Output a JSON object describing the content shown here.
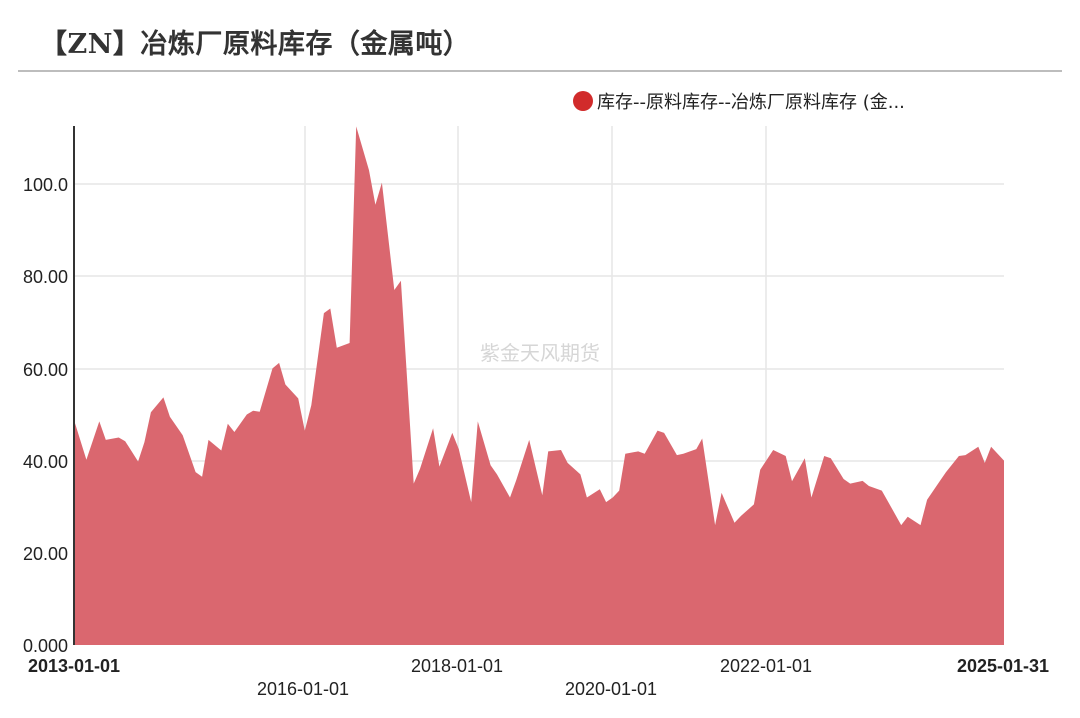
{
  "title": "【ZN】冶炼厂原料库存（金属吨）",
  "legend": {
    "label": "库存--原料库存--冶炼厂原料库存 (金...",
    "color": "#d12b2b"
  },
  "watermark": "紫金天风期货",
  "colors": {
    "area_fill": "#d9626a",
    "grid": "#e6e6e6",
    "axis": "#333333"
  },
  "chart_data": {
    "type": "area",
    "title": "【ZN】冶炼厂原料库存（金属吨）",
    "xlabel": "",
    "ylabel": "",
    "ylim": [
      0,
      112.6
    ],
    "xlim": [
      "2013-01-01",
      "2025-01-31"
    ],
    "grid": true,
    "legend_position": "top-right",
    "y_ticks": [
      "0.000",
      "20.00",
      "40.00",
      "60.00",
      "80.00",
      "100.0"
    ],
    "x_ticks": [
      {
        "label": "2013-01-01",
        "bold": true
      },
      {
        "label": "2016-01-01",
        "bold": false
      },
      {
        "label": "2018-01-01",
        "bold": false
      },
      {
        "label": "2020-01-01",
        "bold": false
      },
      {
        "label": "2022-01-01",
        "bold": false
      },
      {
        "label": "2025-01-31",
        "bold": true
      }
    ],
    "series": [
      {
        "name": "库存--原料库存--冶炼厂原料库存 (金属吨)",
        "x": [
          "2013-01",
          "2013-03",
          "2013-05",
          "2013-06",
          "2013-08",
          "2013-09",
          "2013-11",
          "2013-12",
          "2014-01",
          "2014-03",
          "2014-04",
          "2014-06",
          "2014-08",
          "2014-09",
          "2014-10",
          "2014-12",
          "2015-01",
          "2015-02",
          "2015-04",
          "2015-05",
          "2015-06",
          "2015-08",
          "2015-09",
          "2015-10",
          "2015-12",
          "2016-01",
          "2016-02",
          "2016-04",
          "2016-05",
          "2016-06",
          "2016-08",
          "2016-09",
          "2016-11",
          "2016-12",
          "2017-01",
          "2017-03",
          "2017-04",
          "2017-06",
          "2017-07",
          "2017-09",
          "2017-10",
          "2017-12",
          "2018-01",
          "2018-03",
          "2018-04",
          "2018-06",
          "2018-07",
          "2018-09",
          "2018-10",
          "2018-12",
          "2019-02",
          "2019-03",
          "2019-05",
          "2019-06",
          "2019-08",
          "2019-09",
          "2019-11",
          "2019-12",
          "2020-01",
          "2020-02",
          "2020-03",
          "2020-05",
          "2020-06",
          "2020-08",
          "2020-09",
          "2020-11",
          "2020-12",
          "2021-02",
          "2021-03",
          "2021-05",
          "2021-06",
          "2021-08",
          "2021-09",
          "2021-11",
          "2021-12",
          "2022-02",
          "2022-04",
          "2022-05",
          "2022-07",
          "2022-08",
          "2022-10",
          "2022-11",
          "2023-01",
          "2023-02",
          "2023-04",
          "2023-05",
          "2023-07",
          "2023-08",
          "2023-10",
          "2023-11",
          "2024-01",
          "2024-02",
          "2024-04",
          "2024-05",
          "2024-07",
          "2024-08",
          "2024-10",
          "2024-11",
          "2024-12",
          "2025-01"
        ],
        "values": [
          48.8,
          40.2,
          48.5,
          44.5,
          45.0,
          44.2,
          39.8,
          44.0,
          50.5,
          53.7,
          49.5,
          45.5,
          37.5,
          36.5,
          44.5,
          42.2,
          48.0,
          46.2,
          50.0,
          50.8,
          50.6,
          60.0,
          61.2,
          56.5,
          53.5,
          46.5,
          52.0,
          72.0,
          73.0,
          64.5,
          65.5,
          112.5,
          103.0,
          95.5,
          100.3,
          77.0,
          79.0,
          35.0,
          38.2,
          47.0,
          38.7,
          46.0,
          42.5,
          31.0,
          48.5,
          39.0,
          37.0,
          32.0,
          35.8,
          44.5,
          32.5,
          42.0,
          42.3,
          39.5,
          37.0,
          32.0,
          33.8,
          31.0,
          32.0,
          33.5,
          41.5,
          42.0,
          41.5,
          46.5,
          46.0,
          41.2,
          41.5,
          42.5,
          44.8,
          26.0,
          33.0,
          26.5,
          28.0,
          30.5,
          38.0,
          42.3,
          41.0,
          35.5,
          40.5,
          32.0,
          41.0,
          40.5,
          36.0,
          35.0,
          35.6,
          34.5,
          33.5,
          31.0,
          26.0,
          27.8,
          26.0,
          31.5,
          35.5,
          37.5,
          41.0,
          41.2,
          43.0,
          39.5,
          43.0,
          40.0
        ]
      }
    ]
  }
}
